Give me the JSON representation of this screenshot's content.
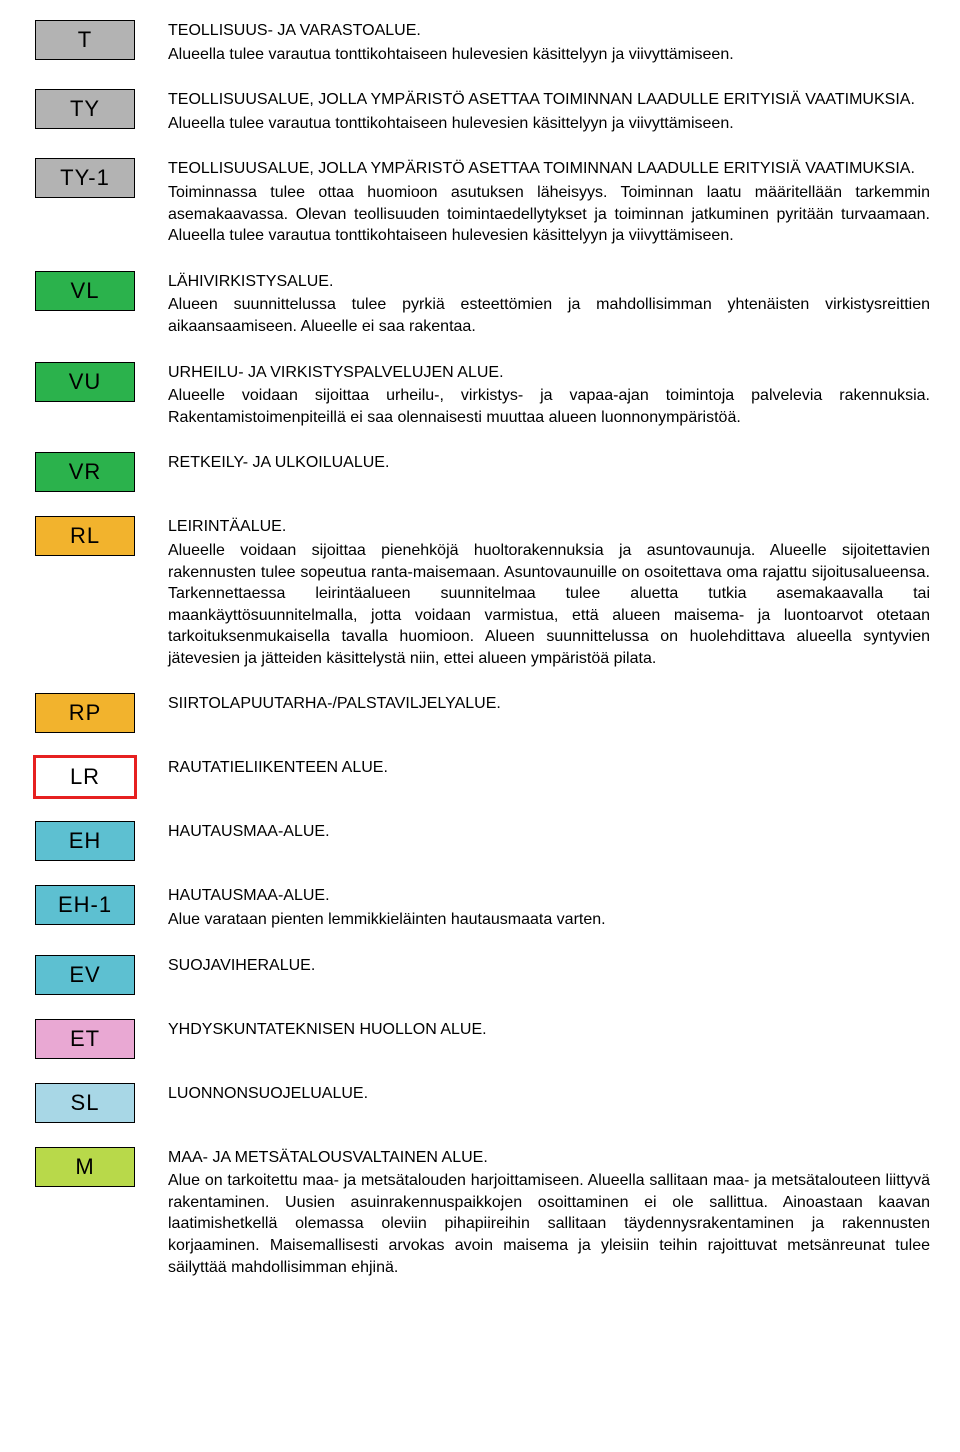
{
  "colors": {
    "gray": "#b3b3b3",
    "green": "#2bb24c",
    "orange": "#f2b32d",
    "white": "#ffffff",
    "cyan": "#5dc0d1",
    "pink": "#e9a8d3",
    "lightblue": "#a8d7e6",
    "lime": "#b8d94a",
    "red_border": "#e62020",
    "text": "#000000"
  },
  "items": [
    {
      "code": "T",
      "bg_key": "gray",
      "title": "TEOLLISUUS- JA VARASTOALUE.",
      "desc": "Alueella tulee varautua tonttikohtaiseen hulevesien käsittelyyn ja viivyttämiseen."
    },
    {
      "code": "TY",
      "bg_key": "gray",
      "title": "TEOLLISUUSALUE, JOLLA YMPÄRISTÖ ASETTAA TOIMINNAN LAADULLE ERITYISIÄ VAATIMUKSIA.",
      "desc": "Alueella tulee varautua tonttikohtaiseen hulevesien käsittelyyn ja viivyttämiseen."
    },
    {
      "code": "TY-1",
      "bg_key": "gray",
      "title": "TEOLLISUUSALUE, JOLLA YMPÄRISTÖ ASETTAA TOIMINNAN LAADULLE ERITYISIÄ VAATIMUKSIA.",
      "desc": "Toiminnassa tulee ottaa huomioon asutuksen läheisyys. Toiminnan laatu määritellään tarkemmin asemakaavassa. Olevan teollisuuden toimintaedellytykset ja toiminnan jatkuminen pyritään turvaamaan. Alueella tulee varautua tonttikohtaiseen hulevesien käsittelyyn ja viivyttämiseen."
    },
    {
      "code": "VL",
      "bg_key": "green",
      "title": "LÄHIVIRKISTYSALUE.",
      "desc": "Alueen suunnittelussa tulee pyrkiä esteettömien ja mahdollisimman yhtenäisten virkistysreittien aikaansaamiseen. Alueelle ei saa rakentaa."
    },
    {
      "code": "VU",
      "bg_key": "green",
      "title": "URHEILU- JA VIRKISTYSPALVELUJEN ALUE.",
      "desc": "Alueelle voidaan sijoittaa urheilu-, virkistys- ja vapaa-ajan toimintoja palvelevia rakennuksia. Rakentamistoimenpiteillä ei saa olennaisesti muuttaa alueen luonnonympäristöä."
    },
    {
      "code": "VR",
      "bg_key": "green",
      "title": "RETKEILY- JA ULKOILUALUE.",
      "desc": ""
    },
    {
      "code": "RL",
      "bg_key": "orange",
      "title": "LEIRINTÄALUE.",
      "desc": "Alueelle voidaan sijoittaa pienehköjä huoltorakennuksia ja asuntovaunuja. Alueelle sijoitettavien rakennusten tulee sopeutua ranta-maisemaan. Asuntovaunuille on osoitettava oma rajattu sijoitusalueensa. Tarkennettaessa leirintäalueen suunnitelmaa tulee aluetta tutkia asemakaavalla tai maankäyttösuunnitelmalla, jotta voidaan varmistua, että alueen maisema- ja luontoarvot otetaan tarkoituksenmukaisella tavalla huomioon. Alueen suunnittelussa on huolehdittava alueella syntyvien jätevesien ja jätteiden käsittelystä niin, ettei alueen ympäristöä pilata."
    },
    {
      "code": "RP",
      "bg_key": "orange",
      "title": "SIIRTOLAPUUTARHA-/PALSTAVILJELYALUE.",
      "desc": ""
    },
    {
      "code": "LR",
      "bg_key": "white",
      "double_border": true,
      "title": "RAUTATIELIIKENTEEN ALUE.",
      "desc": ""
    },
    {
      "code": "EH",
      "bg_key": "cyan",
      "title": "HAUTAUSMAA-ALUE.",
      "desc": ""
    },
    {
      "code": "EH-1",
      "bg_key": "cyan",
      "title": "HAUTAUSMAA-ALUE.",
      "desc": "Alue varataan pienten lemmikkieläinten hautausmaata varten."
    },
    {
      "code": "EV",
      "bg_key": "cyan",
      "title": "SUOJAVIHERALUE.",
      "desc": ""
    },
    {
      "code": "ET",
      "bg_key": "pink",
      "title": "YHDYSKUNTATEKNISEN HUOLLON ALUE.",
      "desc": ""
    },
    {
      "code": "SL",
      "bg_key": "lightblue",
      "title": "LUONNONSUOJELUALUE.",
      "desc": ""
    },
    {
      "code": "M",
      "bg_key": "lime",
      "title": "MAA- JA METSÄTALOUSVALTAINEN ALUE.",
      "desc": "Alue on tarkoitettu maa- ja metsätalouden harjoittamiseen. Alueella sallitaan maa- ja metsätalouteen liittyvä rakentaminen. Uusien asuinrakennuspaikkojen osoittaminen ei ole sallittua. Ainoastaan kaavan laatimishetkellä olemassa oleviin pihapiireihin sallitaan täydennysrakentaminen ja rakennusten korjaaminen. Maisemallisesti arvokas avoin maisema ja yleisiin teihin rajoittuvat metsänreunat tulee säilyttää mahdollisimman ehjinä."
    }
  ]
}
